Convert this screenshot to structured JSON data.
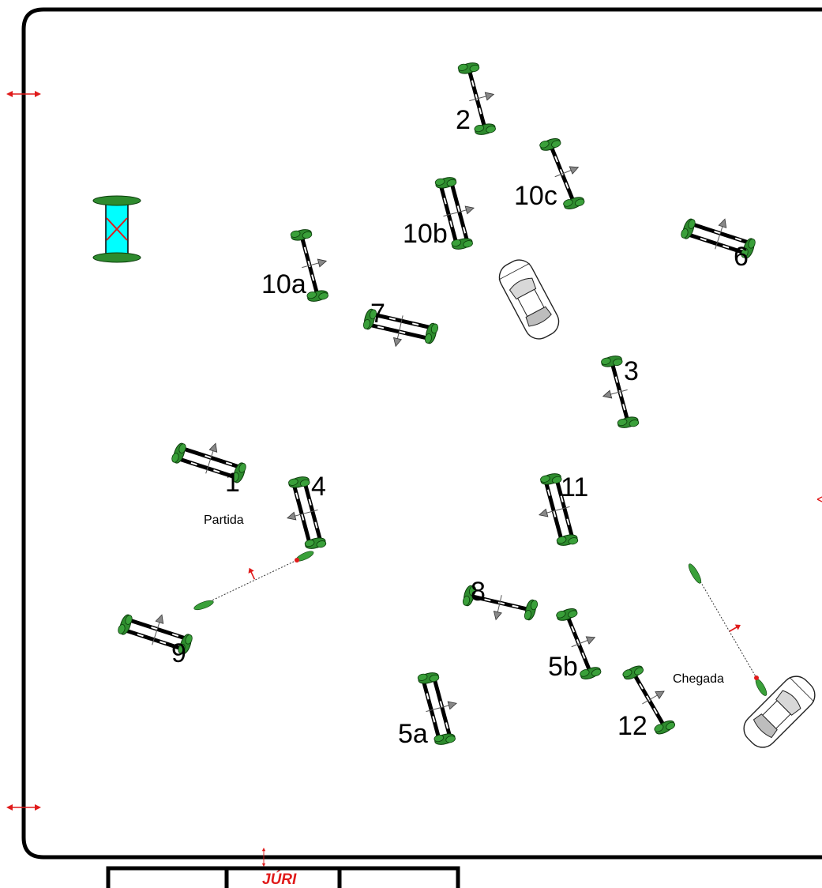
{
  "arena": {
    "start_label": "Partida",
    "finish_label": "Chegada",
    "jury_label": "JÚRI"
  },
  "obstacles": [
    {
      "id": "o1",
      "label": "1",
      "kind": "oxer"
    },
    {
      "id": "o2",
      "label": "2",
      "kind": "vertical"
    },
    {
      "id": "o3",
      "label": "3",
      "kind": "vertical"
    },
    {
      "id": "o4",
      "label": "4",
      "kind": "oxer"
    },
    {
      "id": "o5a",
      "label": "5a",
      "kind": "oxer"
    },
    {
      "id": "o5b",
      "label": "5b",
      "kind": "vertical"
    },
    {
      "id": "o6",
      "label": "6",
      "kind": "oxer"
    },
    {
      "id": "o7",
      "label": "7",
      "kind": "oxer"
    },
    {
      "id": "o8",
      "label": "8",
      "kind": "vertical"
    },
    {
      "id": "o9",
      "label": "9",
      "kind": "oxer"
    },
    {
      "id": "o10a",
      "label": "10a",
      "kind": "vertical"
    },
    {
      "id": "o10b",
      "label": "10b",
      "kind": "oxer"
    },
    {
      "id": "o10c",
      "label": "10c",
      "kind": "vertical"
    },
    {
      "id": "o11",
      "label": "11",
      "kind": "oxer"
    },
    {
      "id": "o12",
      "label": "12",
      "kind": "vertical"
    }
  ],
  "colors": {
    "hedge": "#2e8b2e",
    "water": "#00ffff",
    "marker": "#e01b1b",
    "outline": "#000000"
  },
  "icons": [
    "car-icon",
    "water-jump-icon",
    "double-arrow-icon",
    "direction-arrow-icon"
  ]
}
